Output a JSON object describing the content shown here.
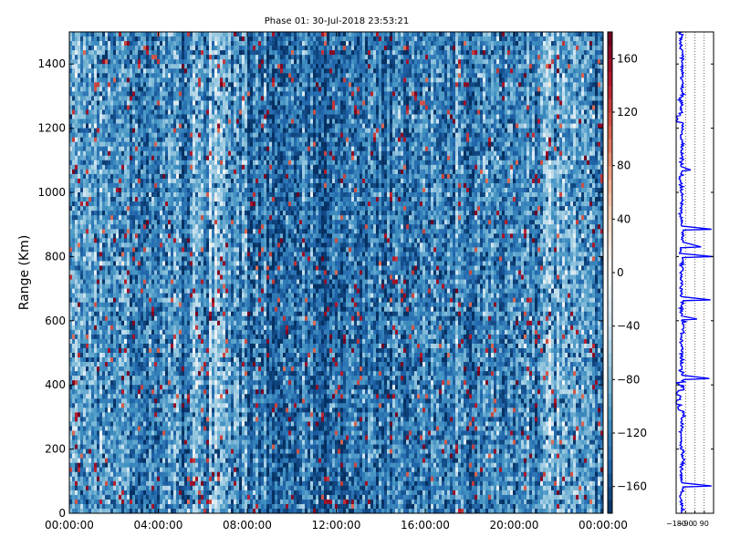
{
  "chart_data": [
    {
      "type": "heatmap",
      "title": "Phase 01: 30-Jul-2018 23:53:21",
      "ylabel": "Range (Km)",
      "xlabel": "",
      "x_ticks": [
        "00:00:00",
        "04:00:00",
        "08:00:00",
        "12:00:00",
        "16:00:00",
        "20:00:00",
        "00:00:00"
      ],
      "y_ticks": [
        0,
        200,
        400,
        600,
        800,
        1000,
        1200,
        1400
      ],
      "xlim_hours": [
        0,
        24
      ],
      "ylim": [
        0,
        1500
      ],
      "colormap": "RdBu_r",
      "colorbar": {
        "vmin": -180,
        "vmax": 180,
        "ticks": [
          -160,
          -120,
          -80,
          -40,
          0,
          40,
          80,
          120,
          160
        ]
      },
      "time_columns_hours": [
        0,
        0.5,
        1,
        1.5,
        2,
        2.5,
        3,
        3.5,
        4,
        4.5,
        5,
        5.5,
        6,
        6.5,
        7,
        7.5,
        8,
        8.5,
        9,
        9.5,
        10,
        10.5,
        11,
        11.5,
        12,
        12.5,
        13,
        13.5,
        14,
        14.5,
        15,
        15.5,
        16,
        16.5,
        17,
        17.5,
        18,
        18.5,
        19,
        19.5,
        20,
        20.5,
        21,
        21.5,
        22,
        22.5,
        23,
        23.5
      ],
      "mean_phase_profile_deg": [
        -95,
        -105,
        -100,
        -110,
        -105,
        -100,
        -110,
        -115,
        -105,
        -100,
        -110,
        -95,
        -100,
        -85,
        -90,
        -110,
        -125,
        -125,
        -130,
        -130,
        -125,
        -130,
        -125,
        -130,
        -130,
        -125,
        -135,
        -130,
        -140,
        -130,
        -125,
        -135,
        -125,
        -120,
        -125,
        -120,
        -120,
        -125,
        -120,
        -115,
        -115,
        -120,
        -110,
        -85,
        -80,
        -100,
        -110,
        -120
      ],
      "noise_std_deg": 30,
      "outlier_fraction": 0.035
    },
    {
      "type": "line",
      "title": "",
      "x_ticks": [
        "-180",
        "-90",
        "0",
        "90"
      ],
      "xlim": [
        -180,
        180
      ],
      "ylim": [
        0,
        1500
      ],
      "y_ticks": [
        0,
        200,
        400,
        600,
        800,
        1000,
        1200,
        1400
      ],
      "line_color": "#0000ff",
      "grid_lines_x": [
        -90,
        0,
        90
      ],
      "baseline_phase_deg": -130,
      "profile": [
        {
          "range_km": 0,
          "phase_deg": -125
        },
        {
          "range_km": 30,
          "phase_deg": -130
        },
        {
          "range_km": 60,
          "phase_deg": -120
        },
        {
          "range_km": 85,
          "phase_deg": 160
        },
        {
          "range_km": 95,
          "phase_deg": -130
        },
        {
          "range_km": 150,
          "phase_deg": -115
        },
        {
          "range_km": 200,
          "phase_deg": -135
        },
        {
          "range_km": 260,
          "phase_deg": -125
        },
        {
          "range_km": 300,
          "phase_deg": -110
        },
        {
          "range_km": 320,
          "phase_deg": -150
        },
        {
          "range_km": 340,
          "phase_deg": -175
        },
        {
          "range_km": 355,
          "phase_deg": -140
        },
        {
          "range_km": 370,
          "phase_deg": -170
        },
        {
          "range_km": 385,
          "phase_deg": -120
        },
        {
          "range_km": 400,
          "phase_deg": -160
        },
        {
          "range_km": 410,
          "phase_deg": -110
        },
        {
          "range_km": 420,
          "phase_deg": 140
        },
        {
          "range_km": 430,
          "phase_deg": -130
        },
        {
          "range_km": 500,
          "phase_deg": -125
        },
        {
          "range_km": 560,
          "phase_deg": -110
        },
        {
          "range_km": 600,
          "phase_deg": -135
        },
        {
          "range_km": 605,
          "phase_deg": 20
        },
        {
          "range_km": 615,
          "phase_deg": -130
        },
        {
          "range_km": 660,
          "phase_deg": -120
        },
        {
          "range_km": 665,
          "phase_deg": 150
        },
        {
          "range_km": 675,
          "phase_deg": -130
        },
        {
          "range_km": 740,
          "phase_deg": -125
        },
        {
          "range_km": 790,
          "phase_deg": -120
        },
        {
          "range_km": 800,
          "phase_deg": 170
        },
        {
          "range_km": 810,
          "phase_deg": -135
        },
        {
          "range_km": 830,
          "phase_deg": 60
        },
        {
          "range_km": 845,
          "phase_deg": -120
        },
        {
          "range_km": 880,
          "phase_deg": -110
        },
        {
          "range_km": 885,
          "phase_deg": 160
        },
        {
          "range_km": 895,
          "phase_deg": -130
        },
        {
          "range_km": 960,
          "phase_deg": -125
        },
        {
          "range_km": 1000,
          "phase_deg": -135
        },
        {
          "range_km": 1060,
          "phase_deg": -120
        },
        {
          "range_km": 1070,
          "phase_deg": -40
        },
        {
          "range_km": 1080,
          "phase_deg": -130
        },
        {
          "range_km": 1100,
          "phase_deg": -125
        },
        {
          "range_km": 1200,
          "phase_deg": -120
        },
        {
          "range_km": 1220,
          "phase_deg": -175
        },
        {
          "range_km": 1240,
          "phase_deg": -130
        },
        {
          "range_km": 1300,
          "phase_deg": -120
        },
        {
          "range_km": 1400,
          "phase_deg": -125
        },
        {
          "range_km": 1440,
          "phase_deg": -135
        },
        {
          "range_km": 1500,
          "phase_deg": -120
        }
      ]
    }
  ]
}
